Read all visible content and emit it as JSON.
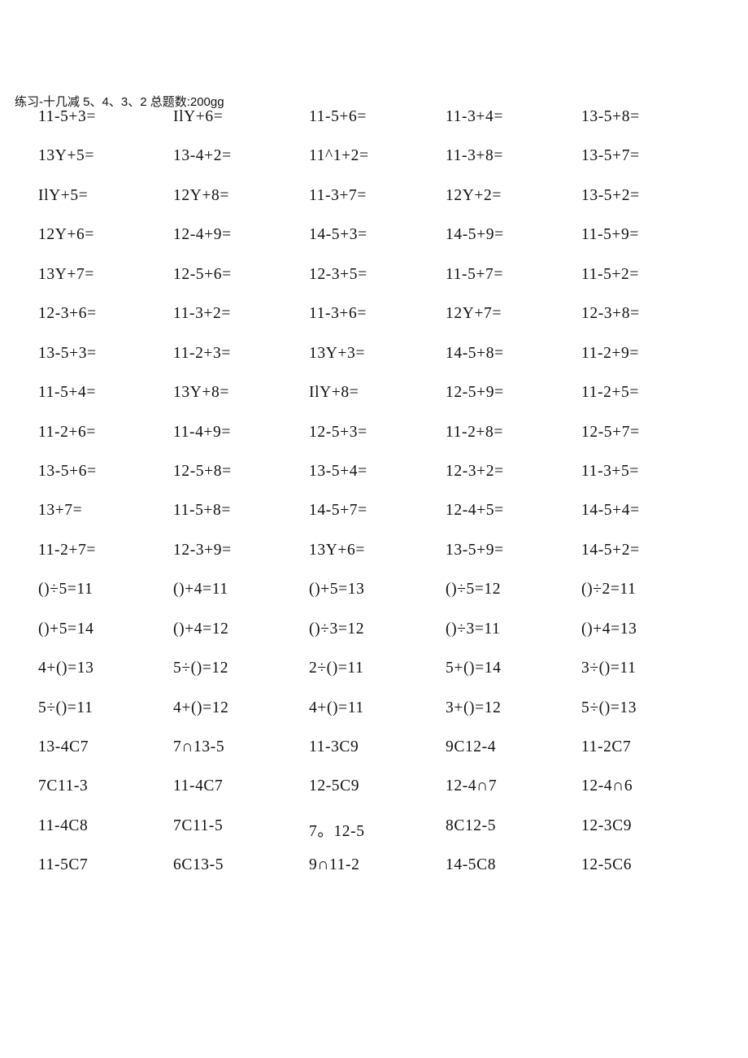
{
  "header": {
    "title": "练习-十几减 5、4、3、2 总题数:200gg"
  },
  "rows": [
    [
      "11-5+3=",
      "IlY+6=",
      "11-5+6=",
      "11-3+4=",
      "13-5+8="
    ],
    [
      "13Y+5=",
      "13-4+2=",
      "11^1+2=",
      "11-3+8=",
      "13-5+7="
    ],
    [
      "IlY+5=",
      "12Y+8=",
      "11-3+7=",
      "12Y+2=",
      "13-5+2="
    ],
    [
      "12Y+6=",
      "12-4+9=",
      "14-5+3=",
      "14-5+9=",
      "11-5+9="
    ],
    [
      "13Y+7=",
      "12-5+6=",
      "12-3+5=",
      "11-5+7=",
      "11-5+2="
    ],
    [
      "12-3+6=",
      "11-3+2=",
      "11-3+6=",
      "12Y+7=",
      "12-3+8="
    ],
    [
      "13-5+3=",
      "11-2+3=",
      "13Y+3=",
      "14-5+8=",
      "11-2+9="
    ],
    [
      "11-5+4=",
      "13Y+8=",
      "IlY+8=",
      "12-5+9=",
      "11-2+5="
    ],
    [
      "11-2+6=",
      "11-4+9=",
      "12-5+3=",
      "11-2+8=",
      "12-5+7="
    ],
    [
      "13-5+6=",
      "12-5+8=",
      "13-5+4=",
      "12-3+2=",
      "11-3+5="
    ],
    [
      "13+7=",
      "11-5+8=",
      "14-5+7=",
      "12-4+5=",
      "14-5+4="
    ],
    [
      "11-2+7=",
      "12-3+9=",
      "13Y+6=",
      "13-5+9=",
      "14-5+2="
    ],
    [
      "()÷5=11",
      "()+4=11",
      "()+5=13",
      "()÷5=12",
      "()÷2=11"
    ],
    [
      "()+5=14",
      "()+4=12",
      "()÷3=12",
      "()÷3=11",
      "()+4=13"
    ],
    [
      "4+()=13",
      "5÷()=12",
      "2÷()=11",
      "5+()=14",
      "3÷()=11"
    ],
    [
      "5÷()=11",
      "4+()=12",
      "4+()=11",
      "3+()=12",
      "5÷()=13"
    ],
    [
      "13-4C7",
      "7∩13-5",
      "11-3C9",
      "9C12-4",
      "11-2C7"
    ],
    [
      "7C11-3",
      "11-4C7",
      "12-5C9",
      "12-4∩7",
      "12-4∩6"
    ],
    [
      "11-4C8",
      "7C11-5",
      "7。12-5",
      "8C12-5",
      "12-3C9"
    ],
    [
      "11-5C7",
      "6C13-5",
      "9∩11-2",
      "14-5C8",
      "12-5C6"
    ]
  ]
}
